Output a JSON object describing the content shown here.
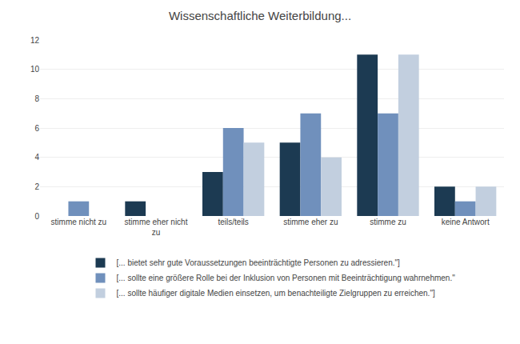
{
  "chart_data": {
    "type": "bar",
    "title": "Wissenschaftliche Weiterbildung...",
    "categories": [
      "stimme nicht zu",
      "stimme eher nicht\nzu",
      "teils/teils",
      "stimme eher zu",
      "stimme zu",
      "keine Antwort"
    ],
    "series": [
      {
        "name": "[... bietet sehr gute Voraussetzungen beeinträchtigte Personen zu adressieren.\"]",
        "color": "#1c3a52",
        "values": [
          0,
          1,
          3,
          5,
          11,
          2
        ]
      },
      {
        "name": "[... sollte eine größere Rolle bei der Inklusion von Personen mit Beeinträchtigung wahrnehmen.\"",
        "color": "#7090bc",
        "values": [
          1,
          0,
          6,
          7,
          7,
          1
        ]
      },
      {
        "name": "[... sollte häufiger digitale Medien einsetzen, um benachteiligte Zielgruppen zu erreichen.\"]",
        "color": "#c2cfdf",
        "values": [
          0,
          0,
          5,
          4,
          11,
          2
        ]
      }
    ],
    "ylim": [
      0,
      12
    ],
    "yticks": [
      0,
      2,
      4,
      6,
      8,
      10,
      12
    ],
    "grid": true,
    "legend": "bottom"
  }
}
